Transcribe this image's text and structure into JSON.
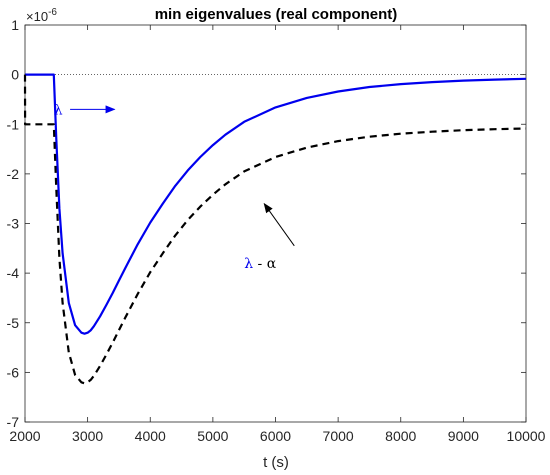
{
  "chart_data": {
    "type": "line",
    "title": "min eigenvalues (real component)",
    "xlabel": "t (s)",
    "ylabel": "",
    "xlim": [
      2000,
      10000
    ],
    "ylim": [
      -7,
      1
    ],
    "y_multiplier_base": "×10",
    "y_multiplier_exp": "-6",
    "xticks": [
      2000,
      3000,
      4000,
      5000,
      6000,
      7000,
      8000,
      9000,
      10000
    ],
    "yticks": [
      1,
      0,
      -1,
      -2,
      -3,
      -4,
      -5,
      -6,
      -7
    ],
    "grid": false,
    "zero_line": true,
    "series": [
      {
        "name": "λ",
        "color": "#0000ee",
        "style": "solid",
        "x": [
          2000,
          2100,
          2200,
          2300,
          2400,
          2460,
          2500,
          2550,
          2600,
          2700,
          2800,
          2900,
          2950,
          3000,
          3050,
          3100,
          3200,
          3300,
          3400,
          3500,
          3600,
          3800,
          4000,
          4200,
          4400,
          4600,
          4800,
          5000,
          5200,
          5500,
          6000,
          6500,
          7000,
          7500,
          8000,
          8500,
          9000,
          9500,
          10000
        ],
        "y": [
          0,
          0,
          0,
          0,
          0,
          0,
          -1.3,
          -2.7,
          -3.6,
          -4.6,
          -5.05,
          -5.2,
          -5.22,
          -5.2,
          -5.15,
          -5.07,
          -4.87,
          -4.64,
          -4.4,
          -4.15,
          -3.9,
          -3.42,
          -2.98,
          -2.6,
          -2.24,
          -1.93,
          -1.66,
          -1.42,
          -1.21,
          -0.95,
          -0.66,
          -0.47,
          -0.34,
          -0.25,
          -0.19,
          -0.15,
          -0.12,
          -0.1,
          -0.085
        ]
      },
      {
        "name": "λ - α",
        "color": "#000000",
        "style": "dashed",
        "x": [
          2000,
          2001,
          2100,
          2200,
          2300,
          2400,
          2460,
          2500,
          2550,
          2600,
          2700,
          2800,
          2900,
          2950,
          3000,
          3050,
          3100,
          3200,
          3300,
          3400,
          3500,
          3600,
          3800,
          4000,
          4200,
          4400,
          4600,
          4800,
          5000,
          5200,
          5500,
          6000,
          6500,
          7000,
          7500,
          8000,
          8500,
          9000,
          9500,
          10000
        ],
        "y": [
          0,
          -1,
          -1,
          -1,
          -1,
          -1,
          -1,
          -2.3,
          -3.7,
          -4.6,
          -5.6,
          -6.05,
          -6.2,
          -6.22,
          -6.2,
          -6.15,
          -6.07,
          -5.87,
          -5.64,
          -5.4,
          -5.15,
          -4.9,
          -4.42,
          -3.98,
          -3.6,
          -3.24,
          -2.93,
          -2.66,
          -2.42,
          -2.21,
          -1.95,
          -1.66,
          -1.47,
          -1.34,
          -1.25,
          -1.19,
          -1.15,
          -1.12,
          -1.1,
          -1.085
        ]
      }
    ],
    "annotations": [
      {
        "text_main": "λ",
        "text_suffix": "",
        "color": "#0000ee",
        "text_at": [
          2460,
          -0.7
        ],
        "arrow_from": [
          2720,
          -0.7
        ],
        "arrow_to": [
          3430,
          -0.7
        ]
      },
      {
        "text_main": "λ",
        "text_suffix": " - α",
        "color": "#000000",
        "text_at": [
          5500,
          -3.8
        ],
        "arrow_from": [
          6300,
          -3.45
        ],
        "arrow_to": [
          5820,
          -2.6
        ]
      }
    ]
  }
}
